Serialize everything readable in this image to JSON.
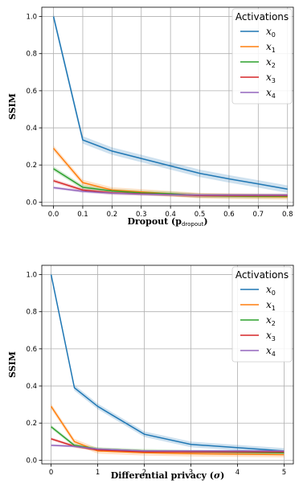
{
  "chart_data": [
    {
      "type": "line",
      "xlabel": "Dropout (p",
      "xlabel_sub": "dropout",
      "xlabel_end": ")",
      "ylabel": "SSIM",
      "xlim": [
        -0.04,
        0.82
      ],
      "ylim": [
        -0.02,
        1.05
      ],
      "xticks": [
        "0.0",
        "0.1",
        "0.2",
        "0.3",
        "0.4",
        "0.5",
        "0.6",
        "0.7",
        "0.8"
      ],
      "xtick_values": [
        0,
        0.1,
        0.2,
        0.3,
        0.4,
        0.5,
        0.6,
        0.7,
        0.8
      ],
      "yticks": [
        "0.0",
        "0.2",
        "0.4",
        "0.6",
        "0.8",
        "1.0"
      ],
      "ytick_values": [
        0,
        0.2,
        0.4,
        0.6,
        0.8,
        1.0
      ],
      "grid": true,
      "legend": {
        "title": "Activations",
        "placement": "top-right"
      },
      "x": [
        0,
        0.1,
        0.2,
        0.3,
        0.4,
        0.5,
        0.6,
        0.7,
        0.8
      ],
      "series": [
        {
          "name": "x",
          "sub": "0",
          "color": "#1f77b4",
          "values": [
            1.0,
            0.335,
            0.275,
            0.235,
            0.195,
            0.155,
            0.125,
            0.098,
            0.07
          ],
          "band": 0.02
        },
        {
          "name": "x",
          "sub": "1",
          "color": "#ff7f0e",
          "values": [
            0.29,
            0.105,
            0.065,
            0.055,
            0.045,
            0.035,
            0.032,
            0.03,
            0.028
          ],
          "band": 0.015
        },
        {
          "name": "x",
          "sub": "2",
          "color": "#2ca02c",
          "values": [
            0.18,
            0.08,
            0.06,
            0.05,
            0.045,
            0.035,
            0.033,
            0.032,
            0.032
          ],
          "band": 0.012
        },
        {
          "name": "x",
          "sub": "3",
          "color": "#d62728",
          "values": [
            0.115,
            0.065,
            0.05,
            0.045,
            0.04,
            0.035,
            0.035,
            0.035,
            0.035
          ],
          "band": 0.01
        },
        {
          "name": "x",
          "sub": "4",
          "color": "#9467bd",
          "values": [
            0.078,
            0.058,
            0.048,
            0.043,
            0.04,
            0.038,
            0.038,
            0.038,
            0.038
          ],
          "band": 0.008
        }
      ]
    },
    {
      "type": "line",
      "xlabel": "Differential privacy (",
      "xlabel_sym": "σ",
      "xlabel_end": ")",
      "ylabel": "SSIM",
      "xlim": [
        -0.2,
        5.2
      ],
      "ylim": [
        -0.02,
        1.05
      ],
      "xticks": [
        "0",
        "1",
        "2",
        "3",
        "4",
        "5"
      ],
      "xtick_values": [
        0,
        1,
        2,
        3,
        4,
        5
      ],
      "yticks": [
        "0.0",
        "0.2",
        "0.4",
        "0.6",
        "0.8",
        "1.0"
      ],
      "ytick_values": [
        0,
        0.2,
        0.4,
        0.6,
        0.8,
        1.0
      ],
      "grid": true,
      "legend": {
        "title": "Activations",
        "placement": "top-right"
      },
      "x": [
        0,
        0.5,
        1,
        2,
        3,
        5
      ],
      "series": [
        {
          "name": "x",
          "sub": "0",
          "color": "#1f77b4",
          "values": [
            1.0,
            0.39,
            0.29,
            0.14,
            0.085,
            0.05
          ],
          "band": 0.015
        },
        {
          "name": "x",
          "sub": "1",
          "color": "#ff7f0e",
          "values": [
            0.29,
            0.1,
            0.05,
            0.04,
            0.035,
            0.03
          ],
          "band": 0.015
        },
        {
          "name": "x",
          "sub": "2",
          "color": "#2ca02c",
          "values": [
            0.18,
            0.08,
            0.06,
            0.05,
            0.045,
            0.04
          ],
          "band": 0.01
        },
        {
          "name": "x",
          "sub": "3",
          "color": "#d62728",
          "values": [
            0.115,
            0.075,
            0.055,
            0.045,
            0.045,
            0.045
          ],
          "band": 0.008
        },
        {
          "name": "x",
          "sub": "4",
          "color": "#9467bd",
          "values": [
            0.08,
            0.075,
            0.06,
            0.05,
            0.05,
            0.05
          ],
          "band": 0.006
        }
      ]
    }
  ]
}
